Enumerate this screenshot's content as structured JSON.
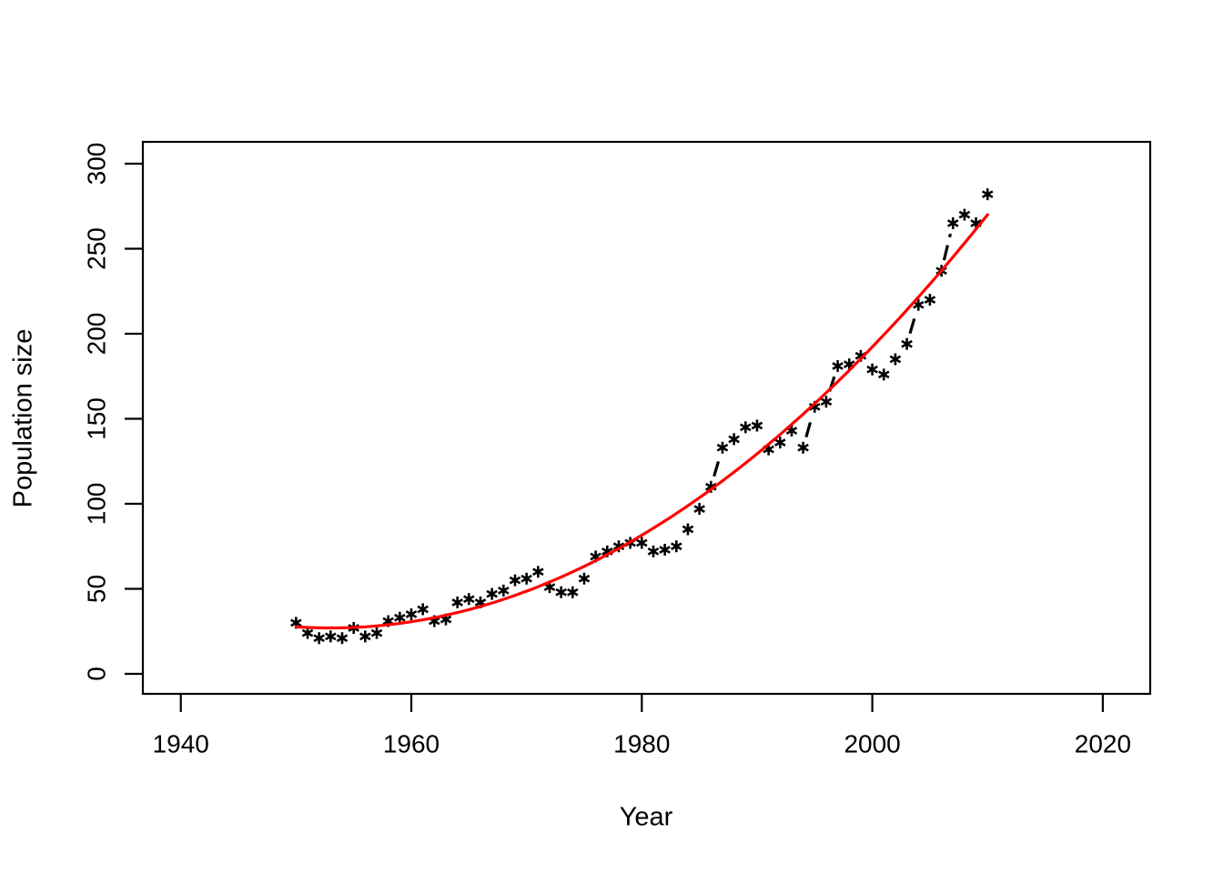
{
  "chart_data": {
    "type": "scatter",
    "title": "",
    "xlabel": "Year",
    "ylabel": "Population size",
    "x_ticks": [
      1940,
      1960,
      1980,
      2000,
      2020
    ],
    "y_ticks": [
      0,
      50,
      100,
      150,
      200,
      250,
      300
    ],
    "xlim": [
      1936.8,
      2024.3
    ],
    "ylim": [
      -12,
      313
    ],
    "grid": false,
    "legend": "none",
    "marker": "asterisk",
    "marker_color": "#000000",
    "connector_style": "dashed-black",
    "fit_line_color": "#FF0000",
    "years": [
      1950,
      1951,
      1952,
      1953,
      1954,
      1955,
      1956,
      1957,
      1958,
      1959,
      1960,
      1961,
      1962,
      1963,
      1964,
      1965,
      1966,
      1967,
      1968,
      1969,
      1970,
      1971,
      1972,
      1973,
      1974,
      1975,
      1976,
      1977,
      1978,
      1979,
      1980,
      1981,
      1982,
      1983,
      1984,
      1985,
      1986,
      1987,
      1988,
      1989,
      1990,
      1991,
      1992,
      1993,
      1994,
      1995,
      1996,
      1997,
      1998,
      1999,
      2000,
      2001,
      2002,
      2003,
      2004,
      2005,
      2006,
      2007,
      2008,
      2009,
      2010
    ],
    "values": [
      30,
      24,
      21,
      22,
      21,
      27,
      22,
      24,
      31,
      33,
      35,
      38,
      31,
      32,
      42,
      44,
      42,
      47,
      49,
      55,
      56,
      60,
      51,
      48,
      48,
      56,
      69,
      72,
      75,
      77,
      77,
      72,
      73,
      75,
      85,
      97,
      110,
      133,
      138,
      145,
      146,
      132,
      136,
      143,
      133,
      157,
      160,
      181,
      182,
      187,
      179,
      176,
      185,
      194,
      217,
      220,
      237,
      265,
      270,
      265,
      282
    ],
    "fit_curve": {
      "model": "quadratic",
      "min_value": 27,
      "vertex_year": 1953,
      "coefficient": 0.0748,
      "year_range": [
        1950,
        2010
      ]
    },
    "visible_dash_gaps": [
      [
        1986,
        1987
      ],
      [
        1994,
        1995
      ],
      [
        1996,
        1997
      ],
      [
        2003,
        2004
      ],
      [
        2006,
        2007
      ]
    ]
  }
}
